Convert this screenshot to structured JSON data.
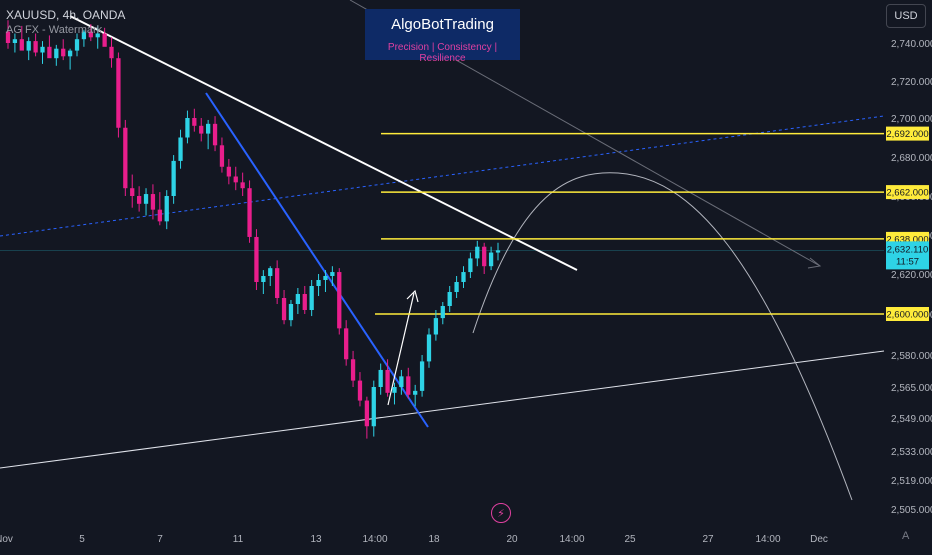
{
  "header": {
    "symbol": "XAUUSD, 4h, OANDA",
    "subtitle": "AG FX - Watermark"
  },
  "currency_button": "USD",
  "branding": {
    "title": "AlgoBotTrading",
    "tagline": "Precision  | Consistency | Resilience"
  },
  "go_to_button": "A",
  "zap_icon": "lightning-icon",
  "colors": {
    "background": "#131722",
    "up_candle": "#2ed3e6",
    "down_candle": "#e91e8c",
    "level_line": "#ffeb3b",
    "trend_white": "#ffffff",
    "trend_blue": "#2962ff",
    "price_label": "#2ed3e6"
  },
  "chart_data": {
    "type": "candlestick",
    "price_axis": {
      "ticks": [
        "2,740.000",
        "2,720.000",
        "2,700.000",
        "2,680.000",
        "2,660.000",
        "2,640.000",
        "2,620.000",
        "2,600.000",
        "2,580.000",
        "2,565.000",
        "2,549.000",
        "2,533.000",
        "2,519.000",
        "2,505.000"
      ]
    },
    "time_axis": {
      "ticks": [
        "Nov",
        "5",
        "7",
        "11",
        "13",
        "14:00",
        "18",
        "20",
        "14:00",
        "25",
        "27",
        "14:00",
        "Dec"
      ]
    },
    "levels": [
      {
        "label": "2,692.000",
        "price": 2692
      },
      {
        "label": "2,662.000",
        "price": 2662
      },
      {
        "label": "2,638.000",
        "price": 2638
      },
      {
        "label": "2,600.000",
        "price": 2600
      }
    ],
    "current_price": {
      "price_label": "2,632.110",
      "countdown": "11:57",
      "price": 2632.11
    },
    "candles": [
      [
        2746,
        2752,
        2737,
        2740
      ],
      [
        2740,
        2745,
        2735,
        2742
      ],
      [
        2742,
        2749,
        2738,
        2736
      ],
      [
        2736,
        2743,
        2731,
        2741
      ],
      [
        2741,
        2745,
        2733,
        2735
      ],
      [
        2735,
        2741,
        2729,
        2738
      ],
      [
        2738,
        2744,
        2733,
        2732
      ],
      [
        2732,
        2739,
        2728,
        2737
      ],
      [
        2737,
        2742,
        2731,
        2733
      ],
      [
        2733,
        2737,
        2726,
        2736
      ],
      [
        2736,
        2745,
        2733,
        2742
      ],
      [
        2742,
        2747,
        2738,
        2746
      ],
      [
        2746,
        2750,
        2741,
        2743
      ],
      [
        2743,
        2749,
        2737,
        2745
      ],
      [
        2745,
        2748,
        2740,
        2738
      ],
      [
        2738,
        2743,
        2727,
        2732
      ],
      [
        2732,
        2735,
        2690,
        2695
      ],
      [
        2695,
        2699,
        2660,
        2664
      ],
      [
        2664,
        2671,
        2654,
        2660
      ],
      [
        2660,
        2665,
        2652,
        2656
      ],
      [
        2656,
        2664,
        2650,
        2661
      ],
      [
        2661,
        2666,
        2648,
        2653
      ],
      [
        2653,
        2662,
        2645,
        2647
      ],
      [
        2647,
        2663,
        2643,
        2660
      ],
      [
        2660,
        2681,
        2656,
        2678
      ],
      [
        2678,
        2694,
        2674,
        2690
      ],
      [
        2690,
        2704,
        2687,
        2700
      ],
      [
        2700,
        2705,
        2693,
        2696
      ],
      [
        2696,
        2700,
        2688,
        2692
      ],
      [
        2692,
        2699,
        2684,
        2697
      ],
      [
        2697,
        2701,
        2683,
        2686
      ],
      [
        2686,
        2690,
        2672,
        2675
      ],
      [
        2675,
        2679,
        2666,
        2670
      ],
      [
        2670,
        2675,
        2663,
        2667
      ],
      [
        2667,
        2672,
        2660,
        2664
      ],
      [
        2664,
        2668,
        2636,
        2639
      ],
      [
        2639,
        2643,
        2612,
        2616
      ],
      [
        2616,
        2622,
        2610,
        2619
      ],
      [
        2619,
        2624,
        2614,
        2623
      ],
      [
        2623,
        2627,
        2605,
        2608
      ],
      [
        2608,
        2612,
        2595,
        2597
      ],
      [
        2597,
        2607,
        2594,
        2605
      ],
      [
        2605,
        2613,
        2600,
        2610
      ],
      [
        2610,
        2614,
        2600,
        2602
      ],
      [
        2602,
        2617,
        2599,
        2614
      ],
      [
        2614,
        2620,
        2609,
        2617
      ],
      [
        2617,
        2622,
        2611,
        2619
      ],
      [
        2619,
        2624,
        2614,
        2621
      ],
      [
        2621,
        2623,
        2590,
        2593
      ],
      [
        2593,
        2597,
        2575,
        2578
      ],
      [
        2578,
        2582,
        2565,
        2568
      ],
      [
        2568,
        2572,
        2555,
        2558
      ],
      [
        2558,
        2560,
        2539,
        2545
      ],
      [
        2545,
        2568,
        2540,
        2565
      ],
      [
        2565,
        2576,
        2561,
        2573
      ],
      [
        2573,
        2578,
        2560,
        2562
      ],
      [
        2562,
        2567,
        2556,
        2565
      ],
      [
        2565,
        2573,
        2561,
        2570
      ],
      [
        2570,
        2574,
        2559,
        2561
      ],
      [
        2561,
        2566,
        2555,
        2563
      ],
      [
        2563,
        2580,
        2560,
        2577
      ],
      [
        2577,
        2593,
        2574,
        2590
      ],
      [
        2590,
        2602,
        2587,
        2598
      ],
      [
        2598,
        2606,
        2595,
        2604
      ],
      [
        2604,
        2614,
        2601,
        2611
      ],
      [
        2611,
        2619,
        2608,
        2616
      ],
      [
        2616,
        2624,
        2613,
        2621
      ],
      [
        2621,
        2631,
        2618,
        2628
      ],
      [
        2628,
        2637,
        2624,
        2634
      ],
      [
        2634,
        2636,
        2620,
        2624
      ],
      [
        2624,
        2634,
        2622,
        2631
      ],
      [
        2631,
        2636,
        2627,
        2632.11
      ]
    ]
  }
}
